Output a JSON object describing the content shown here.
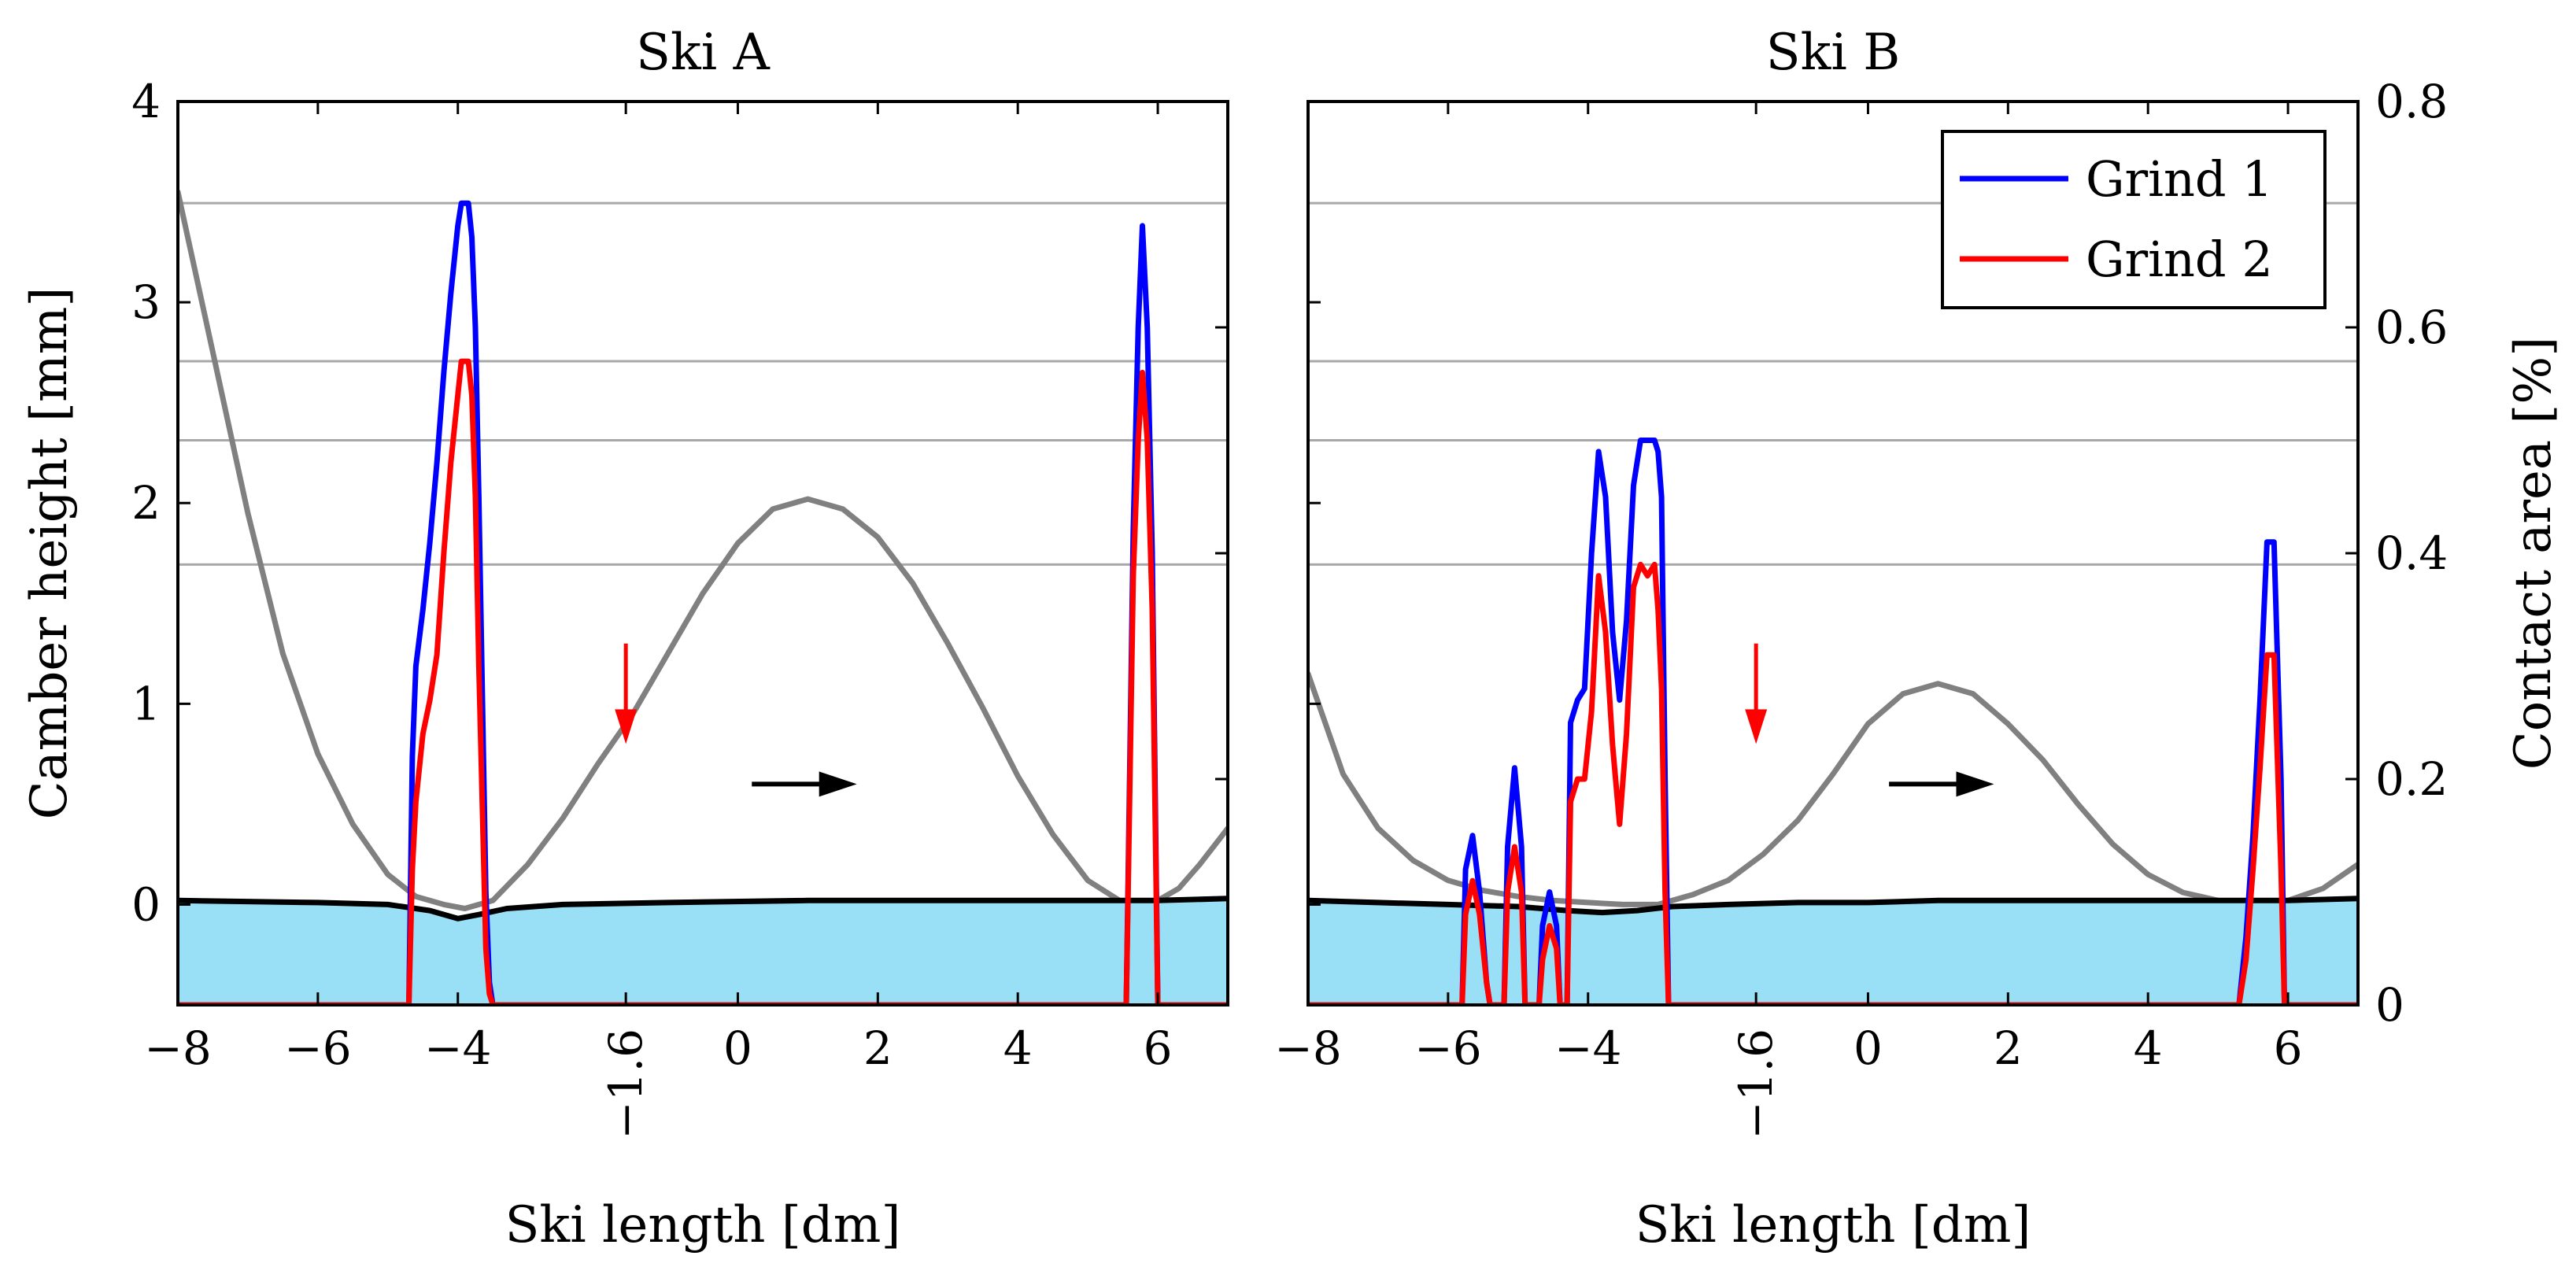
{
  "chart_data": [
    {
      "type": "line",
      "title": "Ski A",
      "xlabel": "Ski length [dm]",
      "ylabel": "Camber height [mm]",
      "y2label": "",
      "xlim": [
        -8,
        7
      ],
      "ylim": [
        -0.5,
        4
      ],
      "y2lim": [
        0,
        0.8
      ],
      "xticks": [
        "−8",
        "−6",
        "−4",
        "−1.6",
        "0",
        "2",
        "4",
        "6"
      ],
      "xtick_values": [
        -8,
        -6,
        -4,
        -1.6,
        0,
        2,
        4,
        6
      ],
      "yticks": [
        "0",
        "1",
        "2",
        "3",
        "4"
      ],
      "ytick_values": [
        0,
        1,
        2,
        3,
        4
      ],
      "y2ticks": [],
      "y2tick_values": [
        0,
        0.2,
        0.4,
        0.6,
        0.8
      ],
      "gridlines_y2": [
        0.39,
        0.5,
        0.57,
        0.71
      ],
      "arrow_down": {
        "x": -1.6,
        "y_from": 1.3,
        "y_to": 0.8,
        "color": "#ff0000"
      },
      "arrow_right": {
        "x_from": 0.2,
        "x_to": 1.7,
        "y": 0.6,
        "color": "#000000"
      },
      "series": [
        {
          "name": "Camber profile",
          "axis": "left",
          "color": "#808080",
          "x": [
            -8,
            -7.5,
            -7,
            -6.5,
            -6,
            -5.5,
            -5,
            -4.6,
            -4.2,
            -3.9,
            -3.5,
            -3,
            -2.5,
            -2,
            -1.5,
            -1,
            -0.5,
            0,
            0.5,
            1,
            1.5,
            2,
            2.5,
            3,
            3.5,
            4,
            4.5,
            5,
            5.5,
            5.8,
            6,
            6.3,
            6.6,
            7
          ],
          "values": [
            3.55,
            2.75,
            1.95,
            1.25,
            0.75,
            0.4,
            0.15,
            0.04,
            0.0,
            -0.02,
            0.02,
            0.2,
            0.43,
            0.7,
            0.95,
            1.25,
            1.55,
            1.8,
            1.97,
            2.02,
            1.97,
            1.83,
            1.6,
            1.3,
            0.98,
            0.64,
            0.35,
            0.12,
            0.01,
            0.0,
            0.02,
            0.08,
            0.2,
            0.38
          ]
        },
        {
          "name": "Base line",
          "axis": "left",
          "color": "#000000",
          "fill": "#99dff5",
          "x": [
            -8,
            -6,
            -5,
            -4.4,
            -4,
            -3.7,
            -3.3,
            -2.5,
            -1,
            1,
            3,
            5,
            6,
            7
          ],
          "values": [
            0.02,
            0.01,
            0.0,
            -0.03,
            -0.07,
            -0.05,
            -0.02,
            0.0,
            0.01,
            0.02,
            0.02,
            0.02,
            0.02,
            0.03
          ]
        },
        {
          "name": "Grind 1",
          "axis": "right",
          "color": "#0000ff",
          "x": [
            -8,
            -4.7,
            -4.65,
            -4.6,
            -4.5,
            -4.4,
            -4.3,
            -4.2,
            -4.1,
            -4.0,
            -3.95,
            -3.85,
            -3.8,
            -3.75,
            -3.7,
            -3.6,
            -3.55,
            -3.5,
            5.55,
            5.65,
            5.72,
            5.78,
            5.85,
            5.92,
            6.0,
            7
          ],
          "values": [
            0,
            0,
            0.22,
            0.3,
            0.35,
            0.41,
            0.48,
            0.56,
            0.63,
            0.69,
            0.71,
            0.71,
            0.68,
            0.6,
            0.45,
            0.1,
            0.02,
            0,
            0,
            0.42,
            0.6,
            0.69,
            0.6,
            0.4,
            0,
            0
          ]
        },
        {
          "name": "Grind 2",
          "axis": "right",
          "color": "#ff0000",
          "x": [
            -8,
            -4.7,
            -4.65,
            -4.6,
            -4.5,
            -4.4,
            -4.3,
            -4.2,
            -4.1,
            -4.0,
            -3.95,
            -3.85,
            -3.8,
            -3.75,
            -3.7,
            -3.6,
            -3.55,
            -3.5,
            5.55,
            5.65,
            5.72,
            5.78,
            5.85,
            5.92,
            6.0,
            7
          ],
          "values": [
            0,
            0,
            0.12,
            0.18,
            0.24,
            0.27,
            0.31,
            0.4,
            0.48,
            0.54,
            0.57,
            0.57,
            0.54,
            0.45,
            0.3,
            0.05,
            0.01,
            0,
            0,
            0.38,
            0.5,
            0.56,
            0.5,
            0.35,
            0,
            0
          ]
        }
      ]
    },
    {
      "type": "line",
      "title": "Ski B",
      "xlabel": "Ski length [dm]",
      "ylabel": "",
      "y2label": "Contact area [%]",
      "xlim": [
        -8,
        7
      ],
      "ylim": [
        -0.5,
        4
      ],
      "y2lim": [
        0,
        0.8
      ],
      "xticks": [
        "−8",
        "−6",
        "−4",
        "−1.6",
        "0",
        "2",
        "4",
        "6"
      ],
      "xtick_values": [
        -8,
        -6,
        -4,
        -1.6,
        0,
        2,
        4,
        6
      ],
      "yticks": [],
      "ytick_values": [
        0,
        1,
        2,
        3,
        4
      ],
      "y2ticks": [
        "0",
        "0.2",
        "0.4",
        "0.6",
        "0.8"
      ],
      "y2tick_values": [
        0,
        0.2,
        0.4,
        0.6,
        0.8
      ],
      "gridlines_y2": [
        0.39,
        0.5,
        0.57,
        0.71
      ],
      "arrow_down": {
        "x": -1.6,
        "y_from": 1.3,
        "y_to": 0.8,
        "color": "#ff0000"
      },
      "arrow_right": {
        "x_from": 0.3,
        "x_to": 1.8,
        "y": 0.6,
        "color": "#000000"
      },
      "legend": {
        "position": "top-right",
        "entries": [
          "Grind 1",
          "Grind 2"
        ]
      },
      "series": [
        {
          "name": "Camber profile",
          "axis": "left",
          "color": "#808080",
          "x": [
            -8,
            -7.5,
            -7,
            -6.5,
            -6,
            -5.5,
            -5,
            -4.5,
            -4,
            -3.5,
            -3,
            -2.5,
            -2,
            -1.5,
            -1,
            -0.5,
            0,
            0.5,
            1,
            1.5,
            2,
            2.5,
            3,
            3.5,
            4,
            4.5,
            5,
            5.5,
            6,
            6.5,
            7
          ],
          "values": [
            1.15,
            0.65,
            0.38,
            0.22,
            0.12,
            0.07,
            0.04,
            0.02,
            0.01,
            0.0,
            0.0,
            0.05,
            0.12,
            0.25,
            0.42,
            0.65,
            0.9,
            1.05,
            1.1,
            1.05,
            0.9,
            0.72,
            0.5,
            0.3,
            0.15,
            0.06,
            0.02,
            0.0,
            0.02,
            0.08,
            0.2
          ]
        },
        {
          "name": "Base line",
          "axis": "left",
          "color": "#000000",
          "fill": "#99dff5",
          "x": [
            -8,
            -7,
            -6,
            -5,
            -4.3,
            -3.8,
            -3.3,
            -2.8,
            -2,
            -1,
            0,
            1,
            2,
            4,
            6,
            7
          ],
          "values": [
            0.02,
            0.01,
            0.0,
            -0.01,
            -0.03,
            -0.04,
            -0.03,
            -0.01,
            0.0,
            0.01,
            0.01,
            0.02,
            0.02,
            0.02,
            0.02,
            0.03
          ]
        },
        {
          "name": "Grind 1",
          "axis": "right",
          "color": "#0000ff",
          "x": [
            -8,
            -5.8,
            -5.75,
            -5.65,
            -5.55,
            -5.45,
            -5.4,
            -5.2,
            -5.15,
            -5.05,
            -4.95,
            -4.9,
            -4.7,
            -4.65,
            -4.55,
            -4.45,
            -4.4,
            -4.3,
            -4.25,
            -4.15,
            -4.05,
            -3.95,
            -3.85,
            -3.75,
            -3.65,
            -3.55,
            -3.45,
            -3.35,
            -3.25,
            -3.15,
            -3.05,
            -3.0,
            -2.95,
            -2.9,
            -2.85,
            5.3,
            5.4,
            5.5,
            5.6,
            5.7,
            5.8,
            5.9,
            5.95,
            7
          ],
          "values": [
            0,
            0,
            0.12,
            0.15,
            0.1,
            0.02,
            0,
            0,
            0.14,
            0.21,
            0.14,
            0,
            0,
            0.07,
            0.1,
            0.07,
            0,
            0,
            0.25,
            0.27,
            0.28,
            0.4,
            0.49,
            0.45,
            0.33,
            0.27,
            0.34,
            0.46,
            0.5,
            0.5,
            0.5,
            0.49,
            0.45,
            0.2,
            0,
            0,
            0.06,
            0.15,
            0.27,
            0.41,
            0.41,
            0.2,
            0,
            0
          ]
        },
        {
          "name": "Grind 2",
          "axis": "right",
          "color": "#ff0000",
          "x": [
            -8,
            -5.8,
            -5.75,
            -5.65,
            -5.55,
            -5.45,
            -5.4,
            -5.2,
            -5.15,
            -5.05,
            -4.95,
            -4.9,
            -4.7,
            -4.65,
            -4.55,
            -4.45,
            -4.4,
            -4.3,
            -4.25,
            -4.15,
            -4.05,
            -3.95,
            -3.85,
            -3.75,
            -3.65,
            -3.55,
            -3.45,
            -3.35,
            -3.25,
            -3.15,
            -3.05,
            -3.0,
            -2.95,
            -2.9,
            -2.85,
            5.3,
            5.4,
            5.5,
            5.6,
            5.7,
            5.8,
            5.9,
            5.95,
            7
          ],
          "values": [
            0,
            0,
            0.08,
            0.11,
            0.08,
            0.02,
            0,
            0,
            0.1,
            0.14,
            0.1,
            0,
            0,
            0.04,
            0.07,
            0.05,
            0,
            0,
            0.18,
            0.2,
            0.2,
            0.26,
            0.38,
            0.33,
            0.23,
            0.16,
            0.24,
            0.37,
            0.39,
            0.38,
            0.39,
            0.35,
            0.28,
            0.1,
            0,
            0,
            0.04,
            0.12,
            0.21,
            0.31,
            0.31,
            0.12,
            0,
            0
          ]
        }
      ]
    }
  ]
}
